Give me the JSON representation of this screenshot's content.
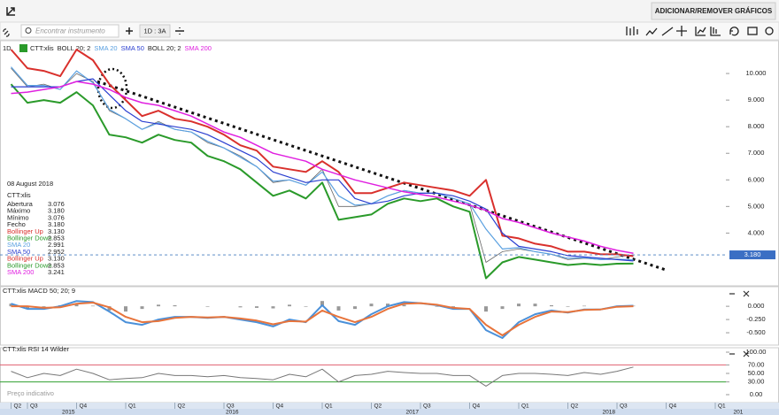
{
  "toolbar": {
    "button": "ADICIONAR/REMOVER GRÁFICOS",
    "search": "Encontrar instrumento",
    "period": "1D : 3A"
  },
  "info_panel": {
    "date": "08 August 2018",
    "symbol": "CTT:xlis",
    "rows": [
      {
        "label": "Abertura",
        "value": "3.076",
        "color": "#222222"
      },
      {
        "label": "Máximo",
        "value": "3.180",
        "color": "#222222"
      },
      {
        "label": "Mínimo",
        "value": "3.076",
        "color": "#222222"
      },
      {
        "label": "Fecho",
        "value": "3.180",
        "color": "#222222"
      },
      {
        "label": "Bollinger Up",
        "value": "3.130",
        "color": "#d9302c"
      },
      {
        "label": "Bollinger Down",
        "value": "2.853",
        "color": "#2a9a2a"
      },
      {
        "label": "SMA 20",
        "value": "2.991",
        "color": "#5aa0e0"
      },
      {
        "label": "SMA 50",
        "value": "2.952",
        "color": "#2b3fd0"
      },
      {
        "label": "Bollinger Up",
        "value": "3.130",
        "color": "#d9302c"
      },
      {
        "label": "Bollinger Down",
        "value": "2.853",
        "color": "#2a9a2a"
      },
      {
        "label": "SMA 200",
        "value": "3.241",
        "color": "#e020e0"
      }
    ]
  },
  "chart_data": [
    {
      "type": "line",
      "interval": "1D",
      "symbol": "CTT:xlis",
      "footnote": "Preço indicativo",
      "legend": [
        {
          "name": "BOLL 20; 2",
          "color": "#222222"
        },
        {
          "name": "SMA 20",
          "color": "#5aa0e0"
        },
        {
          "name": "SMA 50",
          "color": "#2b3fd0"
        },
        {
          "name": "BOLL 20; 2",
          "color": "#222222"
        },
        {
          "name": "SMA 200",
          "color": "#e020e0"
        }
      ],
      "categories": [
        "Q2",
        "Q3",
        null,
        null,
        "Q4",
        null,
        null,
        "Q1",
        null,
        null,
        "Q2",
        null,
        null,
        "Q3",
        null,
        null,
        "Q4",
        null,
        null,
        "Q1",
        null,
        null,
        "Q2",
        null,
        null,
        "Q3",
        null,
        null,
        "Q4",
        null,
        null,
        "Q1",
        null,
        null,
        "Q2",
        null,
        null,
        "Q3",
        null,
        null,
        "Q4",
        null,
        null,
        "Q1",
        null
      ],
      "years": [
        null,
        null,
        null,
        "2015",
        null,
        null,
        null,
        null,
        null,
        null,
        null,
        null,
        null,
        "2016",
        null,
        null,
        null,
        null,
        null,
        null,
        null,
        null,
        null,
        null,
        "2017",
        null,
        null,
        null,
        null,
        null,
        null,
        null,
        null,
        null,
        null,
        null,
        "2018",
        null,
        null,
        null,
        null,
        null,
        null,
        null,
        "201"
      ],
      "ylim": [
        2.05,
        11.2
      ],
      "yticks": [
        {
          "value": 4,
          "label": "4.000"
        },
        {
          "value": 5,
          "label": "5.000"
        },
        {
          "value": 6,
          "label": "6.000"
        },
        {
          "value": 7,
          "label": "7.000"
        },
        {
          "value": 8,
          "label": "8.000"
        },
        {
          "value": 9,
          "label": "9.000"
        },
        {
          "value": 10,
          "label": "10.000"
        }
      ],
      "last_price": {
        "value": 3.18,
        "label": "3.180"
      },
      "series": [
        {
          "color": "#666666",
          "width": 0.8,
          "values": [
            10.2,
            9.5,
            9.6,
            9.4,
            10.0,
            9.7,
            8.6,
            8.3,
            7.9,
            8.2,
            7.9,
            7.8,
            7.4,
            7.2,
            6.9,
            6.5,
            5.9,
            6.0,
            5.8,
            6.4,
            5.0,
            5.0,
            5.1,
            5.4,
            5.6,
            5.5,
            5.5,
            5.3,
            5.1,
            2.9,
            3.3,
            3.4,
            3.3,
            3.2,
            3.0,
            3.05,
            3.0,
            3.1,
            3.18,
            null,
            null,
            null,
            null,
            null,
            null
          ]
        },
        {
          "color": "#d9302c",
          "width": 2,
          "values": [
            10.9,
            10.2,
            10.1,
            9.9,
            10.9,
            10.5,
            9.6,
            9.0,
            8.4,
            8.6,
            8.3,
            8.2,
            8.0,
            7.7,
            7.3,
            7.1,
            6.5,
            6.4,
            6.3,
            6.7,
            6.3,
            5.5,
            5.5,
            5.7,
            5.9,
            5.8,
            5.7,
            5.6,
            5.4,
            6.0,
            3.9,
            3.8,
            3.6,
            3.5,
            3.3,
            3.3,
            3.2,
            3.2,
            3.13,
            null,
            null,
            null,
            null,
            null,
            null
          ]
        },
        {
          "color": "#2a9a2a",
          "width": 2,
          "values": [
            9.6,
            8.9,
            9.0,
            8.9,
            9.3,
            8.8,
            7.7,
            7.6,
            7.4,
            7.7,
            7.5,
            7.4,
            6.9,
            6.7,
            6.4,
            5.9,
            5.4,
            5.6,
            5.3,
            5.9,
            4.5,
            4.6,
            4.7,
            5.1,
            5.3,
            5.2,
            5.3,
            5.0,
            4.8,
            2.3,
            2.9,
            3.1,
            3.0,
            2.9,
            2.8,
            2.85,
            2.8,
            2.85,
            2.853,
            null,
            null,
            null,
            null,
            null,
            null
          ]
        },
        {
          "color": "#5aa0e0",
          "width": 1.2,
          "values": [
            10.25,
            9.55,
            9.55,
            9.4,
            10.1,
            9.65,
            8.65,
            8.3,
            7.9,
            8.15,
            7.9,
            7.8,
            7.45,
            7.2,
            6.85,
            6.5,
            5.95,
            6.0,
            5.8,
            6.3,
            5.4,
            5.05,
            5.1,
            5.4,
            5.6,
            5.5,
            5.5,
            5.3,
            5.1,
            4.15,
            3.4,
            3.45,
            3.3,
            3.2,
            3.05,
            3.07,
            3.0,
            3.02,
            2.991,
            null,
            null,
            null,
            null,
            null,
            null
          ]
        },
        {
          "color": "#2b3fd0",
          "width": 1.2,
          "values": [
            9.5,
            9.5,
            9.5,
            9.5,
            9.7,
            9.8,
            9.2,
            8.6,
            8.2,
            8.1,
            8.0,
            7.9,
            7.7,
            7.4,
            7.1,
            6.8,
            6.3,
            6.1,
            5.9,
            6.0,
            6.0,
            5.3,
            5.1,
            5.2,
            5.4,
            5.5,
            5.5,
            5.4,
            5.2,
            4.9,
            4.0,
            3.5,
            3.4,
            3.3,
            3.15,
            3.1,
            3.05,
            3.0,
            2.952,
            null,
            null,
            null,
            null,
            null,
            null
          ]
        },
        {
          "color": "#e020e0",
          "width": 1.5,
          "values": [
            9.25,
            9.3,
            9.4,
            9.5,
            9.7,
            9.6,
            9.4,
            9.1,
            8.9,
            8.8,
            8.6,
            8.4,
            8.1,
            7.8,
            7.6,
            7.3,
            7.0,
            6.85,
            6.7,
            6.4,
            6.2,
            6.0,
            5.85,
            5.7,
            5.55,
            5.45,
            5.35,
            5.2,
            5.05,
            4.85,
            4.55,
            4.4,
            4.2,
            4.0,
            3.85,
            3.7,
            3.5,
            3.35,
            3.241,
            null,
            null,
            null,
            null,
            null,
            null
          ]
        }
      ]
    },
    {
      "type": "line",
      "title": "CTT:xlis MACD 50; 20; 9",
      "ylim": [
        -0.7,
        0.27
      ],
      "yticks": [
        {
          "value": 0,
          "label": "0.000"
        },
        {
          "value": -0.25,
          "label": "-0.250"
        },
        {
          "value": -0.5,
          "label": "-0.500"
        }
      ],
      "histogram": {
        "color": "#999999",
        "values": [
          0.05,
          -0.05,
          -0.02,
          0.02,
          0.05,
          0.01,
          -0.08,
          -0.1,
          -0.05,
          0.03,
          0.02,
          0,
          -0.01,
          0,
          -0.02,
          -0.03,
          -0.04,
          0.03,
          -0.01,
          0.1,
          -0.08,
          -0.05,
          0.05,
          0.05,
          0.03,
          0,
          -0.01,
          -0.02,
          0,
          -0.1,
          -0.05,
          0.05,
          0.05,
          0.02,
          -0.01,
          0.01,
          0,
          0.01,
          0.01,
          null,
          null,
          null,
          null,
          null,
          null
        ]
      },
      "series": [
        {
          "color": "#4a90d9",
          "width": 2,
          "values": [
            0.05,
            -0.05,
            -0.05,
            0.0,
            0.1,
            0.08,
            -0.1,
            -0.3,
            -0.35,
            -0.25,
            -0.2,
            -0.2,
            -0.22,
            -0.2,
            -0.25,
            -0.3,
            -0.38,
            -0.25,
            -0.3,
            0.02,
            -0.28,
            -0.35,
            -0.15,
            0.0,
            0.08,
            0.06,
            0.02,
            -0.05,
            -0.05,
            -0.45,
            -0.6,
            -0.3,
            -0.15,
            -0.08,
            -0.12,
            -0.06,
            -0.06,
            0.0,
            0.01,
            null,
            null,
            null,
            null,
            null,
            null
          ]
        },
        {
          "color": "#e8743b",
          "width": 2,
          "values": [
            0.0,
            0.0,
            -0.03,
            -0.02,
            0.05,
            0.07,
            -0.02,
            -0.2,
            -0.3,
            -0.28,
            -0.22,
            -0.2,
            -0.21,
            -0.2,
            -0.23,
            -0.27,
            -0.34,
            -0.28,
            -0.29,
            -0.08,
            -0.2,
            -0.3,
            -0.2,
            -0.05,
            0.05,
            0.06,
            0.03,
            -0.03,
            -0.05,
            -0.35,
            -0.55,
            -0.35,
            -0.2,
            -0.1,
            -0.11,
            -0.07,
            -0.06,
            -0.01,
            0.0,
            null,
            null,
            null,
            null,
            null,
            null
          ]
        }
      ]
    },
    {
      "type": "line",
      "title": "CTT:xlis RSI 14 Wilder",
      "ylim": [
        -16.7,
        104.2
      ],
      "yticks": [
        {
          "value": 100,
          "label": "100.00"
        },
        {
          "value": 70,
          "label": "70.00"
        },
        {
          "value": 50,
          "label": "50.00"
        },
        {
          "value": 30,
          "label": "30.00"
        },
        {
          "value": 0,
          "label": "0.00"
        }
      ],
      "bands": [
        {
          "value": 70,
          "color": "#e06070"
        },
        {
          "value": 30,
          "color": "#30a030"
        }
      ],
      "series": [
        {
          "color": "#777777",
          "width": 1,
          "values": [
            55,
            40,
            50,
            45,
            60,
            50,
            35,
            38,
            40,
            50,
            45,
            45,
            42,
            45,
            40,
            38,
            35,
            48,
            42,
            60,
            30,
            45,
            48,
            55,
            52,
            50,
            50,
            45,
            45,
            20,
            45,
            50,
            50,
            48,
            45,
            52,
            48,
            55,
            65,
            null,
            null,
            null,
            null,
            null,
            null
          ]
        }
      ]
    }
  ]
}
